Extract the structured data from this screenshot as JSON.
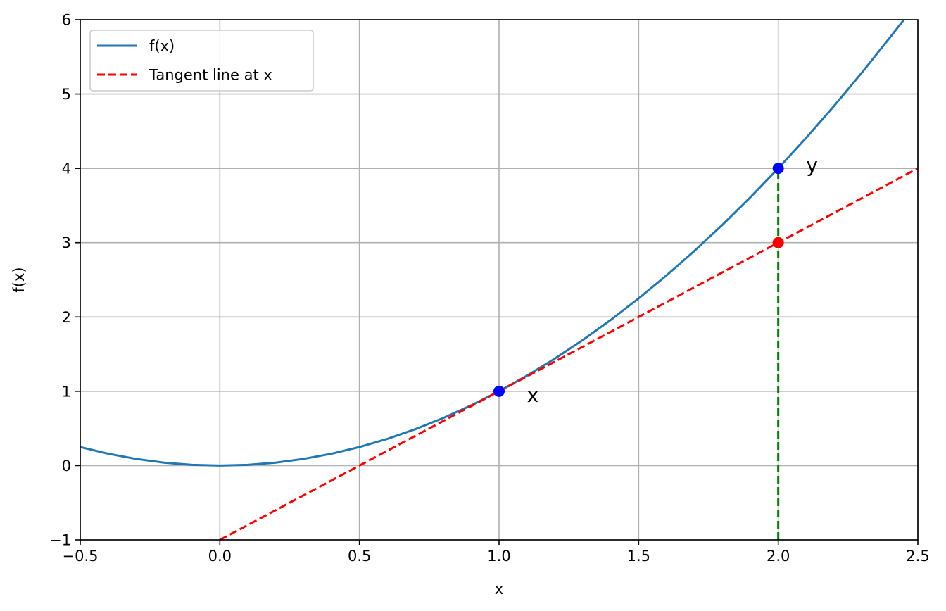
{
  "chart_data": {
    "type": "line",
    "title": "",
    "xlabel": "x",
    "ylabel": "f(x)",
    "xlim": [
      -0.5,
      2.5
    ],
    "ylim": [
      -1,
      6
    ],
    "x_ticks": [
      -0.5,
      0.0,
      0.5,
      1.0,
      1.5,
      2.0,
      2.5
    ],
    "x_tick_labels": [
      "−0.5",
      "0.0",
      "0.5",
      "1.0",
      "1.5",
      "2.0",
      "2.5"
    ],
    "y_ticks": [
      -1,
      0,
      1,
      2,
      3,
      4,
      5,
      6
    ],
    "y_tick_labels": [
      "−1",
      "0",
      "1",
      "2",
      "3",
      "4",
      "5",
      "6"
    ],
    "grid": true,
    "legend_position": "top-left",
    "series": [
      {
        "name": "f(x)",
        "style": "solid",
        "color": "#1f77b4",
        "x": [
          -0.5,
          -0.4,
          -0.3,
          -0.2,
          -0.1,
          0.0,
          0.1,
          0.2,
          0.3,
          0.4,
          0.5,
          0.6,
          0.7,
          0.8,
          0.9,
          1.0,
          1.1,
          1.2,
          1.3,
          1.4,
          1.5,
          1.6,
          1.7,
          1.8,
          1.9,
          2.0,
          2.1,
          2.2,
          2.3,
          2.4,
          2.45
        ],
        "y": [
          0.25,
          0.16,
          0.09,
          0.04,
          0.01,
          0.0,
          0.01,
          0.04,
          0.09,
          0.16,
          0.25,
          0.36,
          0.49,
          0.64,
          0.81,
          1.0,
          1.21,
          1.44,
          1.69,
          1.96,
          2.25,
          2.56,
          2.89,
          3.24,
          3.61,
          4.0,
          4.41,
          4.84,
          5.29,
          5.76,
          6.0
        ]
      },
      {
        "name": "Tangent line at x",
        "style": "dashed",
        "color": "#ff0000",
        "x": [
          0.0,
          2.5
        ],
        "y": [
          -1.0,
          4.0
        ]
      }
    ],
    "vertical_segment": {
      "x": 2.0,
      "y_from": -1,
      "y_to": 4,
      "color": "#008000",
      "style": "dashed"
    },
    "points": [
      {
        "x": 1.0,
        "y": 1.0,
        "color": "#0000ff"
      },
      {
        "x": 2.0,
        "y": 4.0,
        "color": "#0000ff"
      },
      {
        "x": 2.0,
        "y": 3.0,
        "color": "#ff0000"
      }
    ],
    "annotations": [
      {
        "text": "x",
        "x": 1.1,
        "y": 0.95
      },
      {
        "text": "y",
        "x": 2.1,
        "y": 4.05
      }
    ]
  }
}
